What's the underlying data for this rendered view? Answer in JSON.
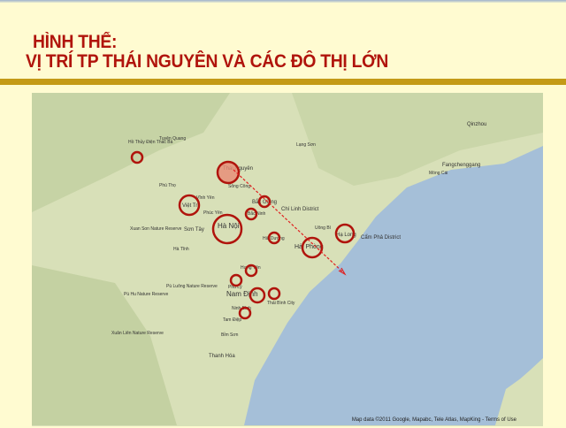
{
  "slide": {
    "title_line1": "HÌNH THẾ:",
    "title_line2": "VỊ TRÍ TP THÁI NGUYÊN VÀ CÁC ĐÔ THỊ LỚN"
  },
  "map": {
    "attribution": "Map data ©2011 Google, Mapabc, Tele Atlas, MapKing - Terms of Use",
    "colors": {
      "land": "#d8e0b8",
      "sea": "#a5bfd8",
      "circle": "#b0140c",
      "highlight": "#e98a74",
      "slide_bg": "#fffbd1",
      "title": "#b0140c",
      "bar": "#c49a16"
    },
    "labels": [
      "Hồ Thủy Điện Thác Bà",
      "Tuyên Quang",
      "Lạng Sơn",
      "Qinzhou",
      "Fangchenggang",
      "Móng Cái",
      "Thái Nguyên",
      "Sông Công",
      "Phú Thọ",
      "Việt Trì",
      "Vĩnh Yên",
      "Phúc Yên",
      "Bắc Giang",
      "Bắc Ninh",
      "Chí Linh District",
      "Sơn Tây",
      "Hà Nội",
      "Hải Dương",
      "Hải Phòng",
      "Hạ Long",
      "Cẩm Phả District",
      "Uông Bí",
      "Xuan Son Nature Reserve",
      "Hà Tĩnh",
      "Hưng Yên",
      "Phủ Lý",
      "Nam Định",
      "Thái Bình City",
      "Ninh Bình",
      "Tam Điệp",
      "Pù Luông Nature Reserve",
      "Pù Hu Nature Reserve",
      "Bỉm Sơn",
      "Thanh Hóa",
      "Xuân Liên Nature Reserve"
    ],
    "highlighted_city": "Thái Nguyên",
    "arrow": "Thái Nguyên → Hải Phòng → sea"
  }
}
